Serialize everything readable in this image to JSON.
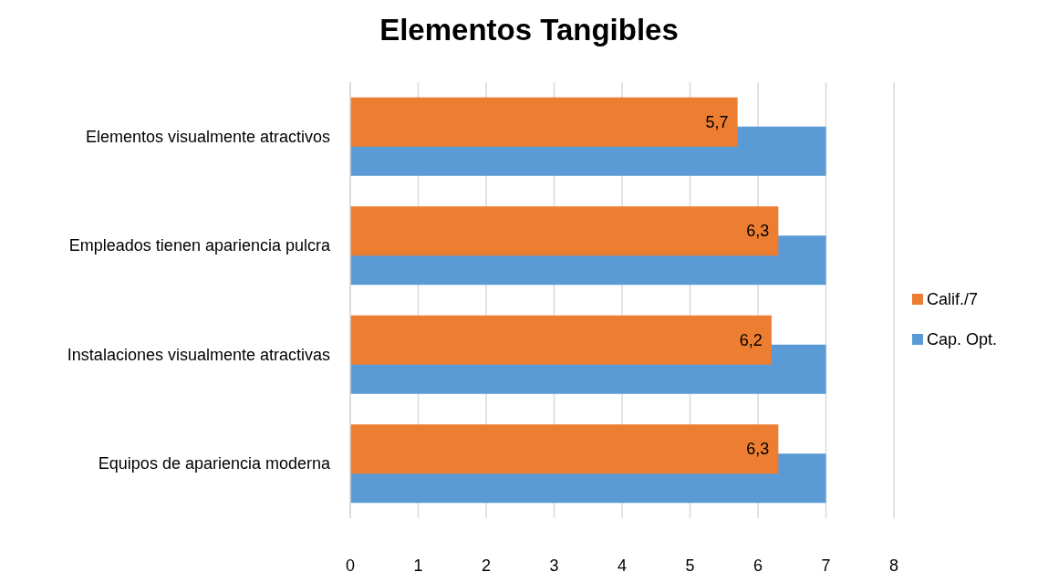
{
  "chart_data": {
    "type": "bar",
    "orientation": "horizontal",
    "title": "Elementos Tangibles",
    "categories": [
      "Elementos visualmente atractivos",
      "Empleados tienen apariencia pulcra",
      "Instalaciones visualmente atractivas",
      "Equipos de apariencia moderna"
    ],
    "series": [
      {
        "name": "Calif./7",
        "color": "#ed7d31",
        "values": [
          5.7,
          6.3,
          6.2,
          6.3
        ],
        "value_labels": [
          "5,7",
          "6,3",
          "6,2",
          "6,3"
        ]
      },
      {
        "name": "Cap. Opt.",
        "color": "#5b9bd5",
        "values": [
          7,
          7,
          7,
          7
        ]
      }
    ],
    "xlim": [
      0,
      8
    ],
    "xticks": [
      0,
      1,
      2,
      3,
      4,
      5,
      6,
      7,
      8
    ],
    "grid": "x",
    "legend": "right"
  }
}
